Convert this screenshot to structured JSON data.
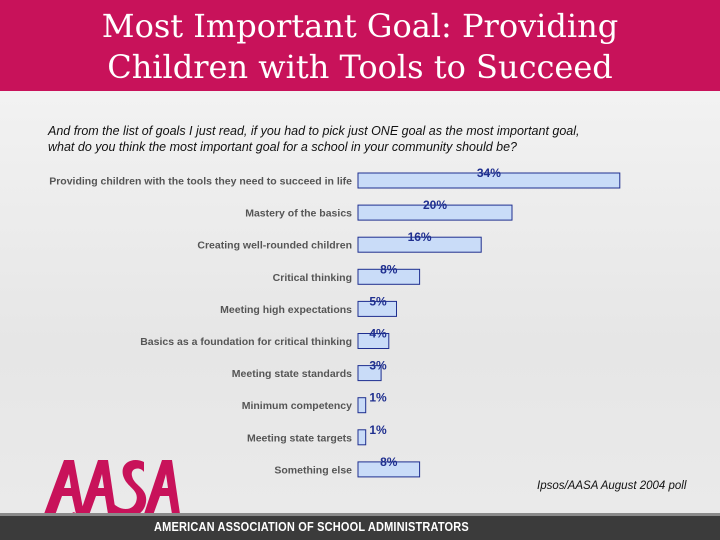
{
  "slide": {
    "title_line1": "Most Important Goal: Providing",
    "title_line2": "Children with Tools to Succeed",
    "question_line1": "And from the list of goals I just read, if you had to pick just ONE goal as the most important goal,",
    "question_line2": "what do you think the most important goal for a school in your community should be?",
    "source": "Ipsos/AASA August 2004 poll",
    "org_name": "AMERICAN ASSOCIATION OF SCHOOL ADMINISTRATORS",
    "logo_text": "AASA"
  },
  "colors": {
    "header": "#c8125a",
    "bar_fill": "#c9dcf8",
    "bar_border": "#1f2f8f",
    "label_text": "#111111",
    "logo": "#c8125a"
  },
  "chart_data": {
    "type": "bar",
    "orientation": "horizontal",
    "title": "",
    "xlabel": "",
    "ylabel": "",
    "xlim": [
      0,
      100
    ],
    "categories": [
      "Providing children with the tools they need to succeed in life",
      "Mastery of the basics",
      "Creating well-rounded children",
      "Critical thinking",
      "Meeting high expectations",
      "Basics as a foundation for critical thinking",
      "Meeting state standards",
      "Minimum competency",
      "Meeting state targets",
      "Something else"
    ],
    "values": [
      34,
      20,
      16,
      8,
      5,
      4,
      3,
      1,
      1,
      8
    ],
    "data_labels": [
      "34%",
      "20%",
      "16%",
      "8%",
      "5%",
      "4%",
      "3%",
      "1%",
      "1%",
      "8%"
    ]
  }
}
